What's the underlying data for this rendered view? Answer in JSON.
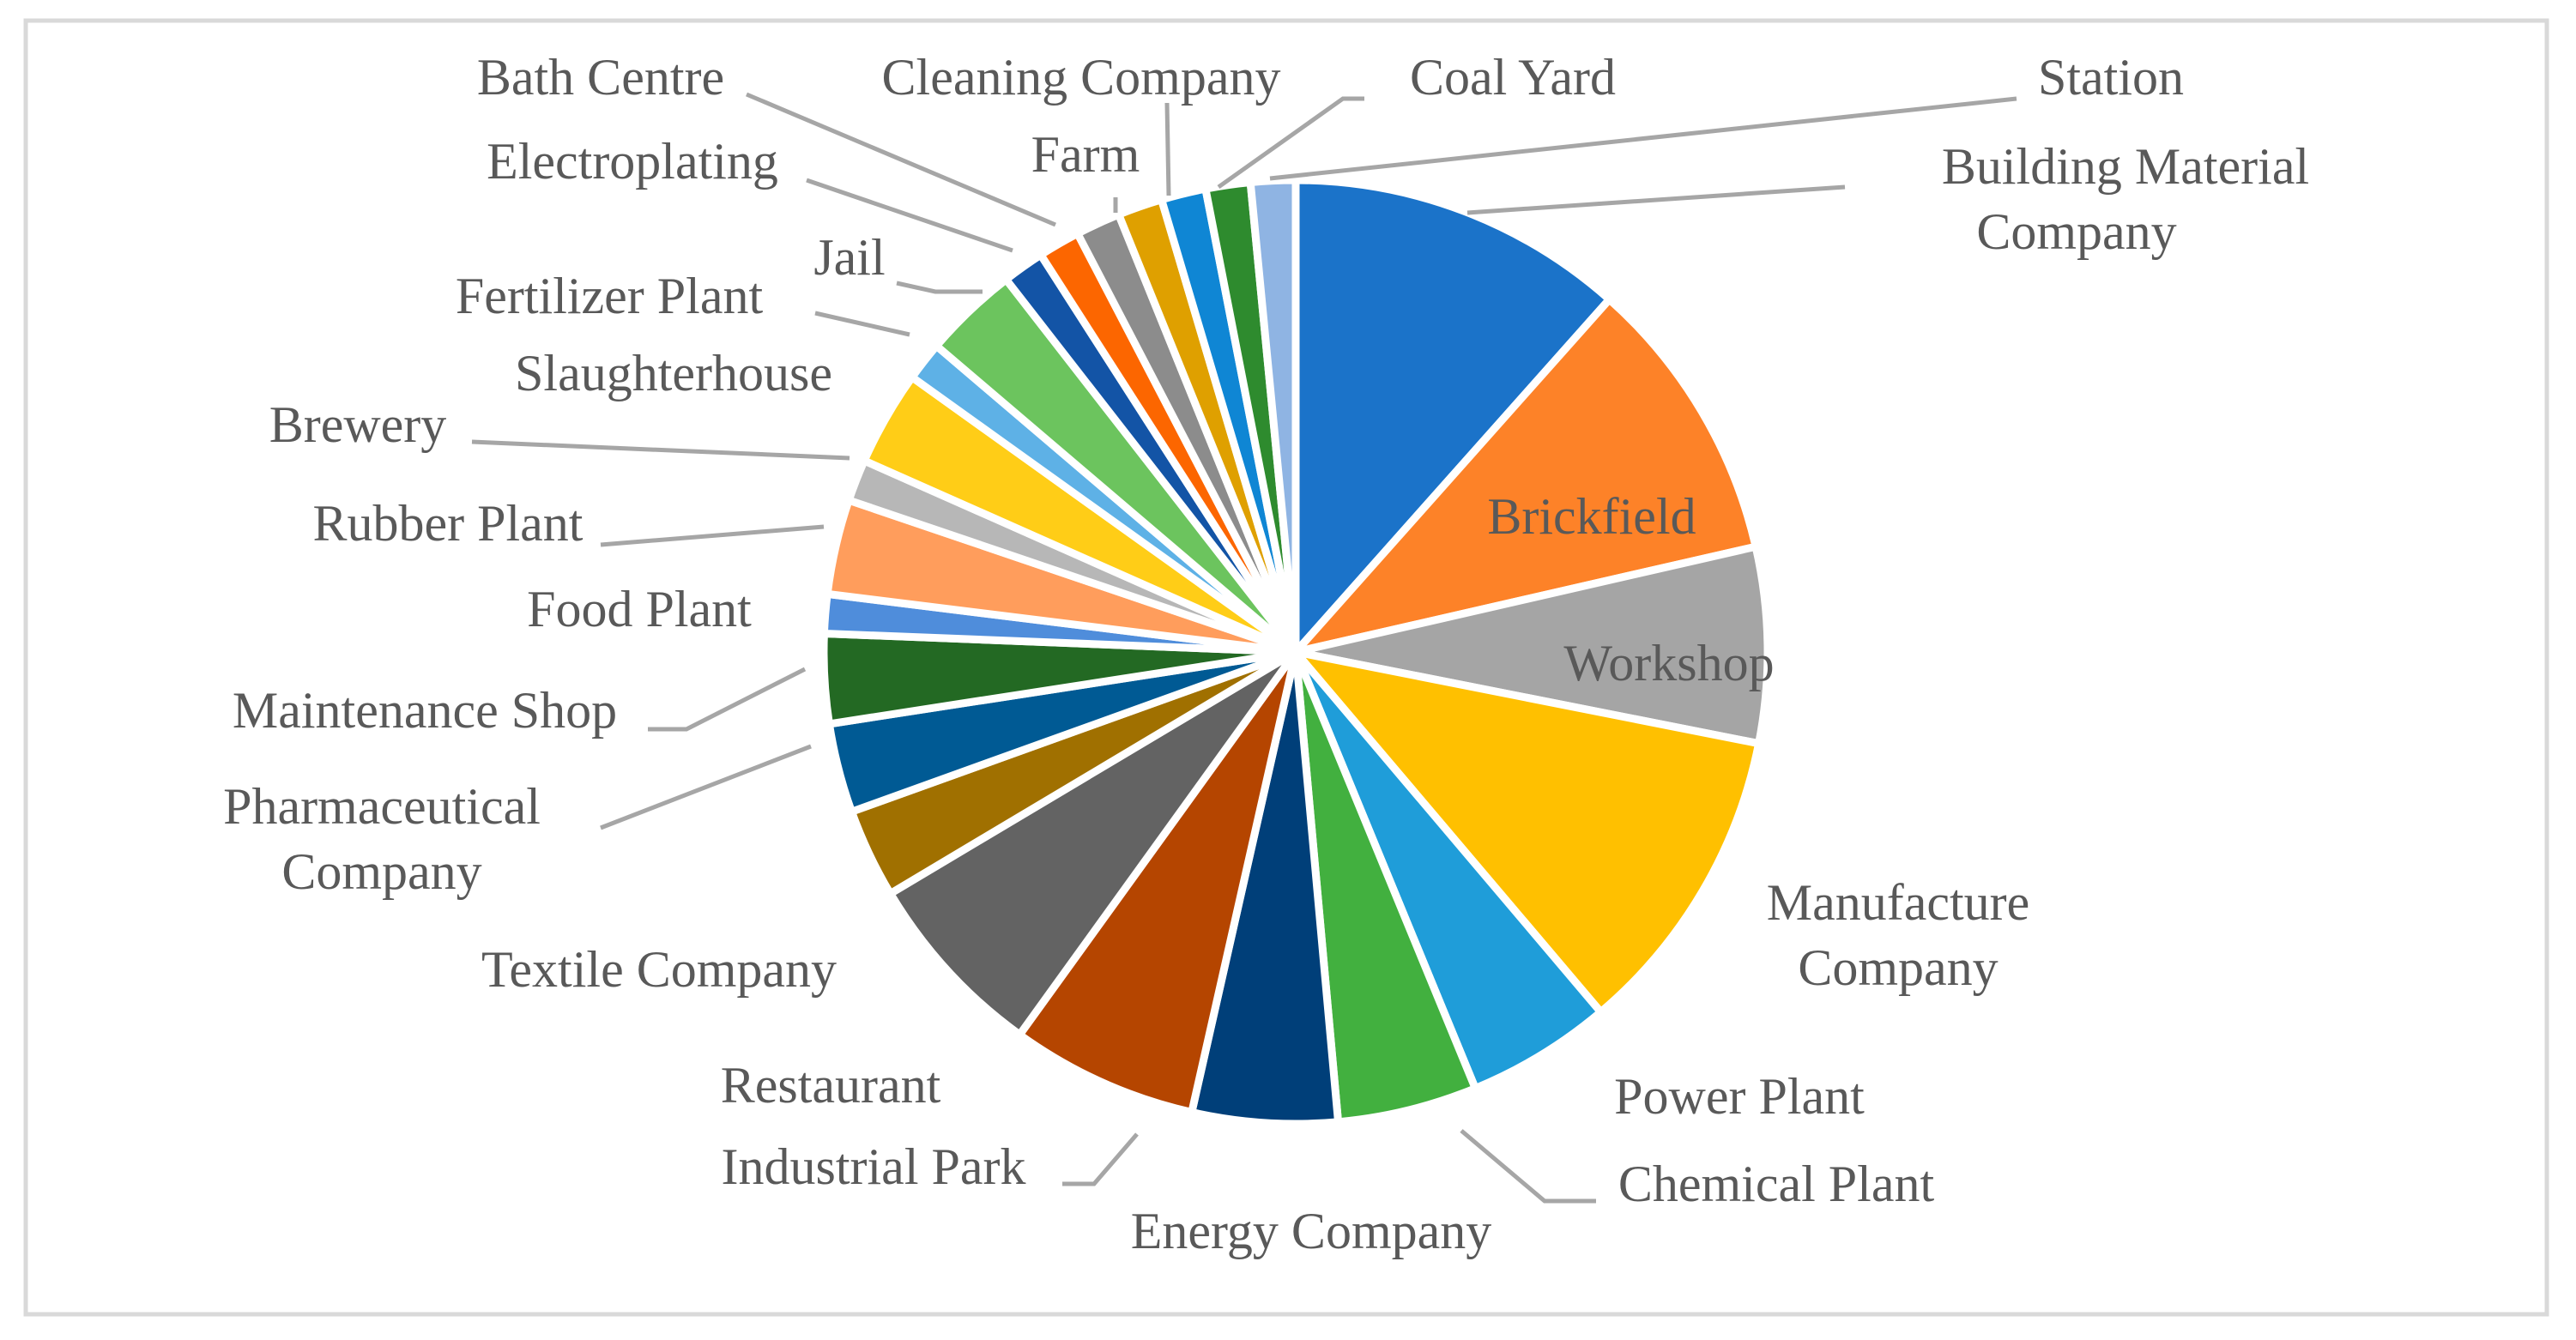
{
  "chart_data": {
    "type": "pie",
    "title": "",
    "legend": "none",
    "slices": [
      {
        "label": "Building Material Company",
        "value": 12.1,
        "color": "#1b73c9"
      },
      {
        "label": "Brickfield",
        "value": 10.3,
        "color": "#fd8228"
      },
      {
        "label": "Workshop",
        "value": 7.0,
        "color": "#a5a5a5"
      },
      {
        "label": "Manufacture Company",
        "value": 11.2,
        "color": "#ffc000"
      },
      {
        "label": "Power Plant",
        "value": 5.2,
        "color": "#1f9dd9"
      },
      {
        "label": "Chemical Plant",
        "value": 5.0,
        "color": "#42b03f"
      },
      {
        "label": "Energy Company",
        "value": 5.2,
        "color": "#003f79"
      },
      {
        "label": "Industrial Park",
        "value": 6.7,
        "color": "#b54500"
      },
      {
        "label": "Restaurant",
        "value": 6.8,
        "color": "#636363"
      },
      {
        "label": "Textile Company",
        "value": 3.2,
        "color": "#a07000"
      },
      {
        "label": "Pharmaceutical Company",
        "value": 3.2,
        "color": "#005a94"
      },
      {
        "label": "Maintenance Shop",
        "value": 3.2,
        "color": "#236923"
      },
      {
        "label": "Food Plant",
        "value": 1.4,
        "color": "#4f8ddb"
      },
      {
        "label": "Rubber Plant",
        "value": 3.4,
        "color": "#ff9d5c"
      },
      {
        "label": "Brewery",
        "value": 1.5,
        "color": "#b7b7b7"
      },
      {
        "label": "Slaughterhouse",
        "value": 3.4,
        "color": "#ffcd17"
      },
      {
        "label": "Fertilizer Plant",
        "value": 1.4,
        "color": "#5eb1e6"
      },
      {
        "label": "Jail",
        "value": 3.4,
        "color": "#6cc45e"
      },
      {
        "label": "Electroplating",
        "value": 1.5,
        "color": "#1354a6"
      },
      {
        "label": "Bath Centre",
        "value": 1.5,
        "color": "#fc6600"
      },
      {
        "label": "Farm",
        "value": 1.6,
        "color": "#8c8c8c"
      },
      {
        "label": "Cleaning Company",
        "value": 1.6,
        "color": "#dfa000"
      },
      {
        "label": "Coal Yard",
        "value": 1.6,
        "color": "#0f86d4"
      },
      {
        "label": "Station",
        "value": 1.6,
        "color": "#2e8b2e"
      },
      {
        "label": "",
        "value": 1.6,
        "color": "#8fb4e3"
      }
    ]
  }
}
